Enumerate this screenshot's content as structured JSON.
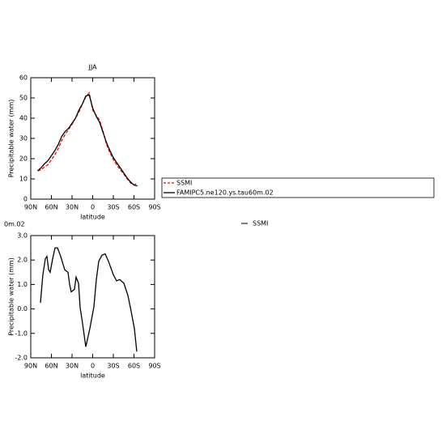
{
  "chart_data": [
    {
      "type": "line",
      "title": "JJA",
      "xlabel": "latitude",
      "ylabel": "Precipitable water (mm)",
      "xlim": [
        90,
        -90
      ],
      "xticks": [
        {
          "value": 90,
          "label": "90N"
        },
        {
          "value": 60,
          "label": "60N"
        },
        {
          "value": 30,
          "label": "30N"
        },
        0,
        {
          "value": -30,
          "label": "30S"
        },
        {
          "value": -60,
          "label": "60S"
        },
        {
          "value": -90,
          "label": "90S"
        }
      ],
      "ylim": [
        0,
        60
      ],
      "yticks": [
        0,
        10,
        20,
        30,
        40,
        50,
        60
      ],
      "x": [
        80,
        75,
        70,
        65,
        60,
        55,
        50,
        45,
        40,
        35,
        30,
        25,
        20,
        15,
        10,
        5,
        0,
        -5,
        -10,
        -15,
        -20,
        -25,
        -30,
        -35,
        -40,
        -45,
        -50,
        -55,
        -60,
        -65
      ],
      "series": [
        {
          "name": "SSMI",
          "color": "#ff0000",
          "dashed": true,
          "values": [
            14,
            14.5,
            16,
            17,
            19.5,
            22,
            25,
            29,
            32,
            34.5,
            37,
            40,
            43,
            47,
            50.5,
            52.5,
            44,
            41.5,
            39,
            33.5,
            27,
            23,
            19.5,
            17,
            14.5,
            12.5,
            10,
            8,
            7,
            8
          ]
        },
        {
          "name": "FAMIPC5.ne120.ys.tau60m.02",
          "color": "#000000",
          "dashed": false,
          "values": [
            14,
            15.5,
            17.5,
            19,
            21.5,
            24,
            27,
            31,
            33.5,
            35,
            37.5,
            40,
            44,
            47,
            51,
            51.5,
            45,
            41,
            38,
            33,
            28,
            24,
            20.5,
            18,
            15.5,
            13,
            10.5,
            8.5,
            7,
            6.5
          ]
        }
      ]
    },
    {
      "type": "line",
      "title": "0m.02",
      "annotation": "SSMI",
      "xlabel": "latitude",
      "ylabel": "Precipitable water (mm)",
      "xlim": [
        90,
        -90
      ],
      "xticks": [
        {
          "value": 90,
          "label": "90N"
        },
        {
          "value": 60,
          "label": "60N"
        },
        {
          "value": 30,
          "label": "30N"
        },
        0,
        {
          "value": -30,
          "label": "30S"
        },
        {
          "value": -60,
          "label": "60S"
        },
        {
          "value": -90,
          "label": "90S"
        }
      ],
      "ylim": [
        -2,
        3
      ],
      "yticks": [
        {
          "value": -2,
          "label": "-2.0"
        },
        {
          "value": -1,
          "label": "-1.0"
        },
        {
          "value": 0,
          "label": "0.0"
        },
        {
          "value": 1,
          "label": "1.0"
        },
        {
          "value": 2,
          "label": "2.0"
        },
        {
          "value": 3,
          "label": "3.0"
        }
      ],
      "x": [
        75.9,
        72.4,
        68.8,
        66.5,
        64,
        61.8,
        58.2,
        54.7,
        51.2,
        46.5,
        40.6,
        35.9,
        33.5,
        31.2,
        26.5,
        24.1,
        20.6,
        18.2,
        14.7,
        10,
        4.1,
        -1.8,
        -5.3,
        -8.8,
        -13.5,
        -18.2,
        -22.9,
        -30,
        -34.7,
        -39.4,
        -45.3,
        -51.2,
        -55.9,
        -60.6,
        -64.1
      ],
      "series": [
        {
          "color": "#000000",
          "dashed": false,
          "values": [
            0.25,
            1.4,
            2.05,
            2.15,
            1.6,
            1.5,
            2.05,
            2.5,
            2.5,
            2.15,
            1.6,
            1.5,
            1.0,
            0.7,
            0.8,
            1.3,
            1.05,
            0.05,
            -0.6,
            -1.55,
            -0.8,
            0.1,
            1.2,
            1.95,
            2.2,
            2.25,
            1.95,
            1.4,
            1.15,
            1.2,
            1.05,
            0.55,
            -0.1,
            -0.8,
            -1.75
          ]
        }
      ]
    }
  ]
}
